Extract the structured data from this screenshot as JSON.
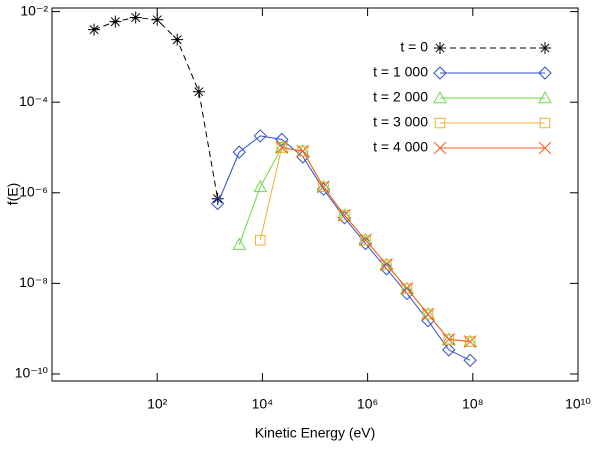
{
  "chart_data": {
    "type": "line",
    "xlabel": "Kinetic Energy (eV)",
    "ylabel": "f(E)",
    "xscale": "log",
    "yscale": "log",
    "xlim": [
      1,
      10000000000
    ],
    "ylim": [
      7e-11,
      0.012
    ],
    "xticks": [
      {
        "value": 100,
        "label": "10²"
      },
      {
        "value": 10000,
        "label": "10⁴"
      },
      {
        "value": 1000000,
        "label": "10⁶"
      },
      {
        "value": 100000000,
        "label": "10⁸"
      },
      {
        "value": 10000000000,
        "label": "10¹⁰"
      }
    ],
    "yticks": [
      {
        "value": 1e-10,
        "label": "10⁻¹⁰"
      },
      {
        "value": 1e-08,
        "label": "10⁻⁸"
      },
      {
        "value": 1e-06,
        "label": "10⁻⁶"
      },
      {
        "value": 0.0001,
        "label": "10⁻⁴"
      },
      {
        "value": 0.01,
        "label": "10⁻²"
      }
    ],
    "legend": "upper right",
    "series": [
      {
        "name": "t = 0",
        "color": "#000000",
        "marker": "star",
        "dashed": true,
        "x": [
          6.3,
          16,
          39,
          100,
          240,
          620,
          1410
        ],
        "values": [
          0.004,
          0.006,
          0.0074,
          0.0066,
          0.0024,
          0.00017,
          7.4e-07
        ]
      },
      {
        "name": "t = 1 000",
        "color": "#3050c8",
        "marker": "diamond",
        "dashed": false,
        "x": [
          1410,
          3630,
          9120,
          23400,
          58900,
          145000,
          363000,
          912000,
          2290000,
          5600000,
          14100000,
          35000000,
          89000000
        ],
        "values": [
          5.8e-07,
          7.9e-06,
          1.8e-05,
          1.5e-05,
          6.2e-06,
          1.2e-06,
          2.8e-07,
          7.6e-08,
          2.1e-08,
          6e-09,
          1.5e-09,
          3.4e-10,
          2e-10
        ]
      },
      {
        "name": "t = 2 000",
        "color": "#66dd44",
        "marker": "triangle",
        "dashed": false,
        "x": [
          3630,
          9120,
          23400,
          58900,
          145000,
          363000,
          912000,
          2290000,
          5600000,
          14100000,
          35000000,
          89000000
        ],
        "values": [
          7.2e-08,
          1.35e-06,
          1e-05,
          8.3e-06,
          1.35e-06,
          3.2e-07,
          9.1e-08,
          2.6e-08,
          7.7e-09,
          2.1e-09,
          5.8e-10,
          5.2e-10
        ]
      },
      {
        "name": "t = 3 000",
        "color": "#f0b030",
        "marker": "square",
        "dashed": false,
        "x": [
          9120,
          23400,
          58900,
          145000,
          363000,
          912000,
          2290000,
          5600000,
          14100000,
          35000000,
          89000000
        ],
        "values": [
          9e-08,
          1e-05,
          8.3e-06,
          1.35e-06,
          3.2e-07,
          9.1e-08,
          2.6e-08,
          7.7e-09,
          2.1e-09,
          5.8e-10,
          5.2e-10
        ]
      },
      {
        "name": "t = 4 000",
        "color": "#f06020",
        "marker": "x",
        "dashed": false,
        "x": [
          23400,
          58900,
          145000,
          363000,
          912000,
          2290000,
          5600000,
          14100000,
          35000000,
          89000000
        ],
        "values": [
          1e-05,
          8.3e-06,
          1.35e-06,
          3.2e-07,
          9.1e-08,
          2.6e-08,
          7.7e-09,
          2.1e-09,
          5.8e-10,
          5.2e-10
        ]
      }
    ]
  }
}
